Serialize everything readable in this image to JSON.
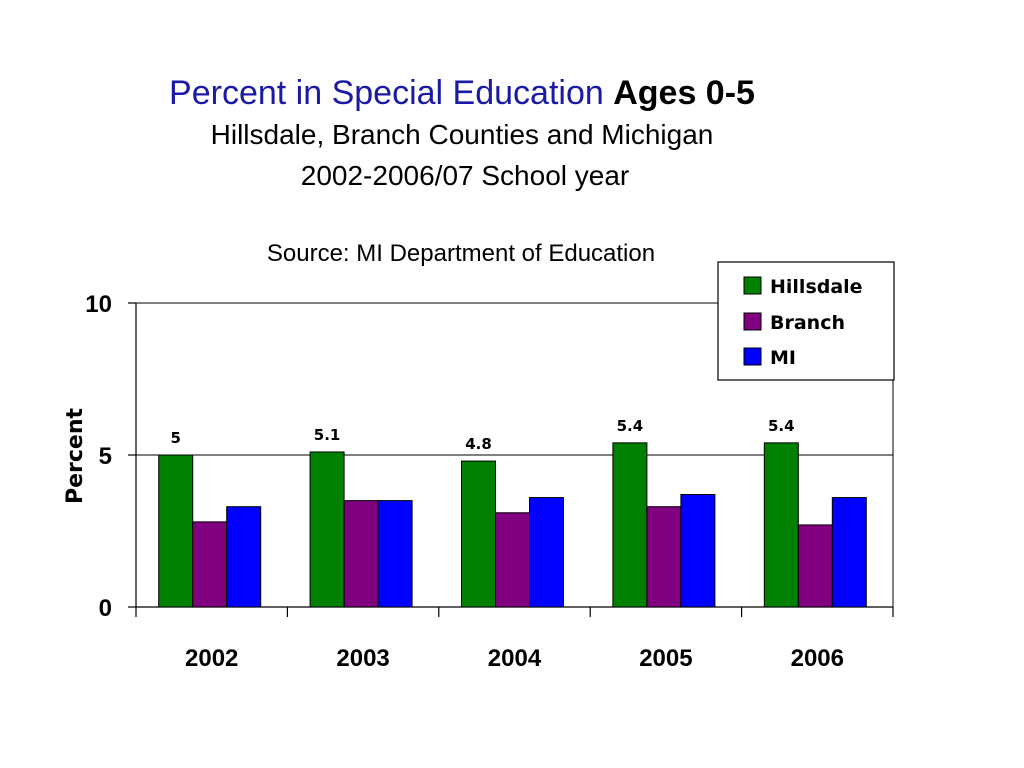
{
  "chart_data": {
    "type": "bar",
    "title": "Percent in Special Education",
    "title_bold": "Ages 0-5",
    "subtitle": "Hillsdale, Branch Counties and Michigan",
    "subtitle2": "2002-2006/07 School year",
    "source": "Source: MI Department of Education",
    "xlabel": "",
    "ylabel": "Percent",
    "ylim": [
      0,
      10
    ],
    "yticks": [
      "0",
      "5",
      "10"
    ],
    "ytick_values": [
      0,
      5,
      10
    ],
    "categories": [
      "2002",
      "2003",
      "2004",
      "2005",
      "2006"
    ],
    "series": [
      {
        "name": "Hillsdale",
        "color": "#008000",
        "values": [
          5.0,
          5.1,
          4.8,
          5.4,
          5.4
        ]
      },
      {
        "name": "Branch",
        "color": "#800080",
        "values": [
          2.8,
          3.5,
          3.1,
          3.3,
          2.7
        ]
      },
      {
        "name": "MI",
        "color": "#0000ff",
        "values": [
          3.3,
          3.5,
          3.6,
          3.7,
          3.6
        ]
      }
    ],
    "data_labels": [
      "5",
      "5.1",
      "4.8",
      "5.4",
      "5.4"
    ],
    "grid": "horizontal",
    "legend_position": "top-right"
  }
}
